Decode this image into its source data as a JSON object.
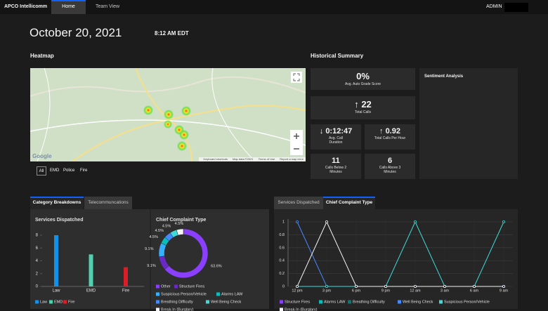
{
  "header": {
    "brand": "APCO Intellicomm",
    "tabs": [
      "Home",
      "Team View"
    ],
    "user": "ADMIN"
  },
  "date": "October 20, 2021",
  "time": "8:12 AM EDT",
  "heatmap": {
    "title": "Heatmap",
    "filters": [
      "All",
      "EMD",
      "Police",
      "Fire"
    ],
    "attribution": [
      "Keyboard shortcuts",
      "Map data ©2021",
      "Terms of Use",
      "Report a map error"
    ],
    "logo": "Google"
  },
  "historical_summary": {
    "title": "Historical Summary",
    "cards": [
      {
        "value": "0%",
        "label": "Avg. Auto Grade Score"
      },
      {
        "arrow": "↑",
        "value": "22",
        "label": "Total Calls"
      },
      {
        "arrow": "↓",
        "value": "0:12:47",
        "label": "Avg. Call Duration"
      },
      {
        "arrow": "↑",
        "value": "0.92",
        "label": "Total Calls Per Hour"
      },
      {
        "value": "11",
        "label": "Calls Below 2 Minutes"
      },
      {
        "value": "6",
        "label": "Calls Above 3 Minutes"
      }
    ]
  },
  "sentiment": {
    "title": "Sentiment Analysis"
  },
  "left_tabs": [
    "Category Breakdowns",
    "Telecommuncations"
  ],
  "right_tabs": [
    "Services Dispatched",
    "Chief Complaint Type"
  ],
  "chart_data": [
    {
      "type": "bar",
      "title": "Services Dispatched",
      "categories": [
        "Law",
        "EMD",
        "Fire"
      ],
      "values": [
        8,
        5,
        3
      ],
      "colors": [
        "#1192e8",
        "#4fd1b0",
        "#da1e28"
      ],
      "ylim": [
        0,
        8
      ],
      "yticks": [
        0,
        2,
        4,
        6,
        8
      ],
      "legend": "bottom"
    },
    {
      "type": "pie",
      "donut": true,
      "title": "Chief Complaint Type",
      "categories": [
        "Other",
        "Structure Fires",
        "Suspicious Person/Vehicle",
        "Alarms LAW",
        "Breathing Difficulty",
        "Well Being Check",
        "Break-In (Burglary)"
      ],
      "values": [
        63.6,
        9.1,
        9.1,
        4.5,
        4.5,
        4.5,
        4.5
      ],
      "value_labels": [
        "63.6%",
        "9.1%",
        "9.1%",
        "4.5%",
        "4.5%",
        "4.5%",
        "4.5%"
      ],
      "colors": [
        "#8a3ffc",
        "#6929c4",
        "#33b1ff",
        "#08bdba",
        "#4589ff",
        "#3ddbd9",
        "#f4f4f4"
      ],
      "legend": "bottom"
    },
    {
      "type": "line",
      "categories": [
        "12 pm",
        "3 pm",
        "6 pm",
        "9 pm",
        "12 am",
        "3 am",
        "6 am",
        "9 am"
      ],
      "series": [
        {
          "name": "Structure Fires",
          "color": "#8a3ffc",
          "values": [
            0,
            0,
            0,
            0,
            0,
            0,
            0,
            0
          ]
        },
        {
          "name": "Alarms LAW",
          "color": "#08bdba",
          "values": [
            0,
            0,
            0,
            0,
            0,
            0,
            0,
            0
          ]
        },
        {
          "name": "Breathing Difficulty",
          "color": "#007d79",
          "values": [
            0,
            0,
            0,
            0,
            0,
            0,
            0,
            0
          ]
        },
        {
          "name": "Well Being Check",
          "color": "#4589ff",
          "values": [
            1,
            0,
            0,
            0,
            0,
            0,
            0,
            0
          ]
        },
        {
          "name": "Suspicious Person/Vehicle",
          "color": "#3ddbd9",
          "values": [
            0,
            0,
            0,
            0,
            1,
            0,
            0,
            1
          ]
        },
        {
          "name": "Break-In (Burglary)",
          "color": "#f4f4f4",
          "values": [
            0,
            1,
            0,
            0,
            0,
            0,
            0,
            0
          ]
        }
      ],
      "ylim": [
        0,
        1
      ],
      "yticks": [
        0,
        0.2,
        0.4,
        0.6,
        0.8,
        1
      ],
      "grid": true,
      "legend": "bottom"
    }
  ]
}
